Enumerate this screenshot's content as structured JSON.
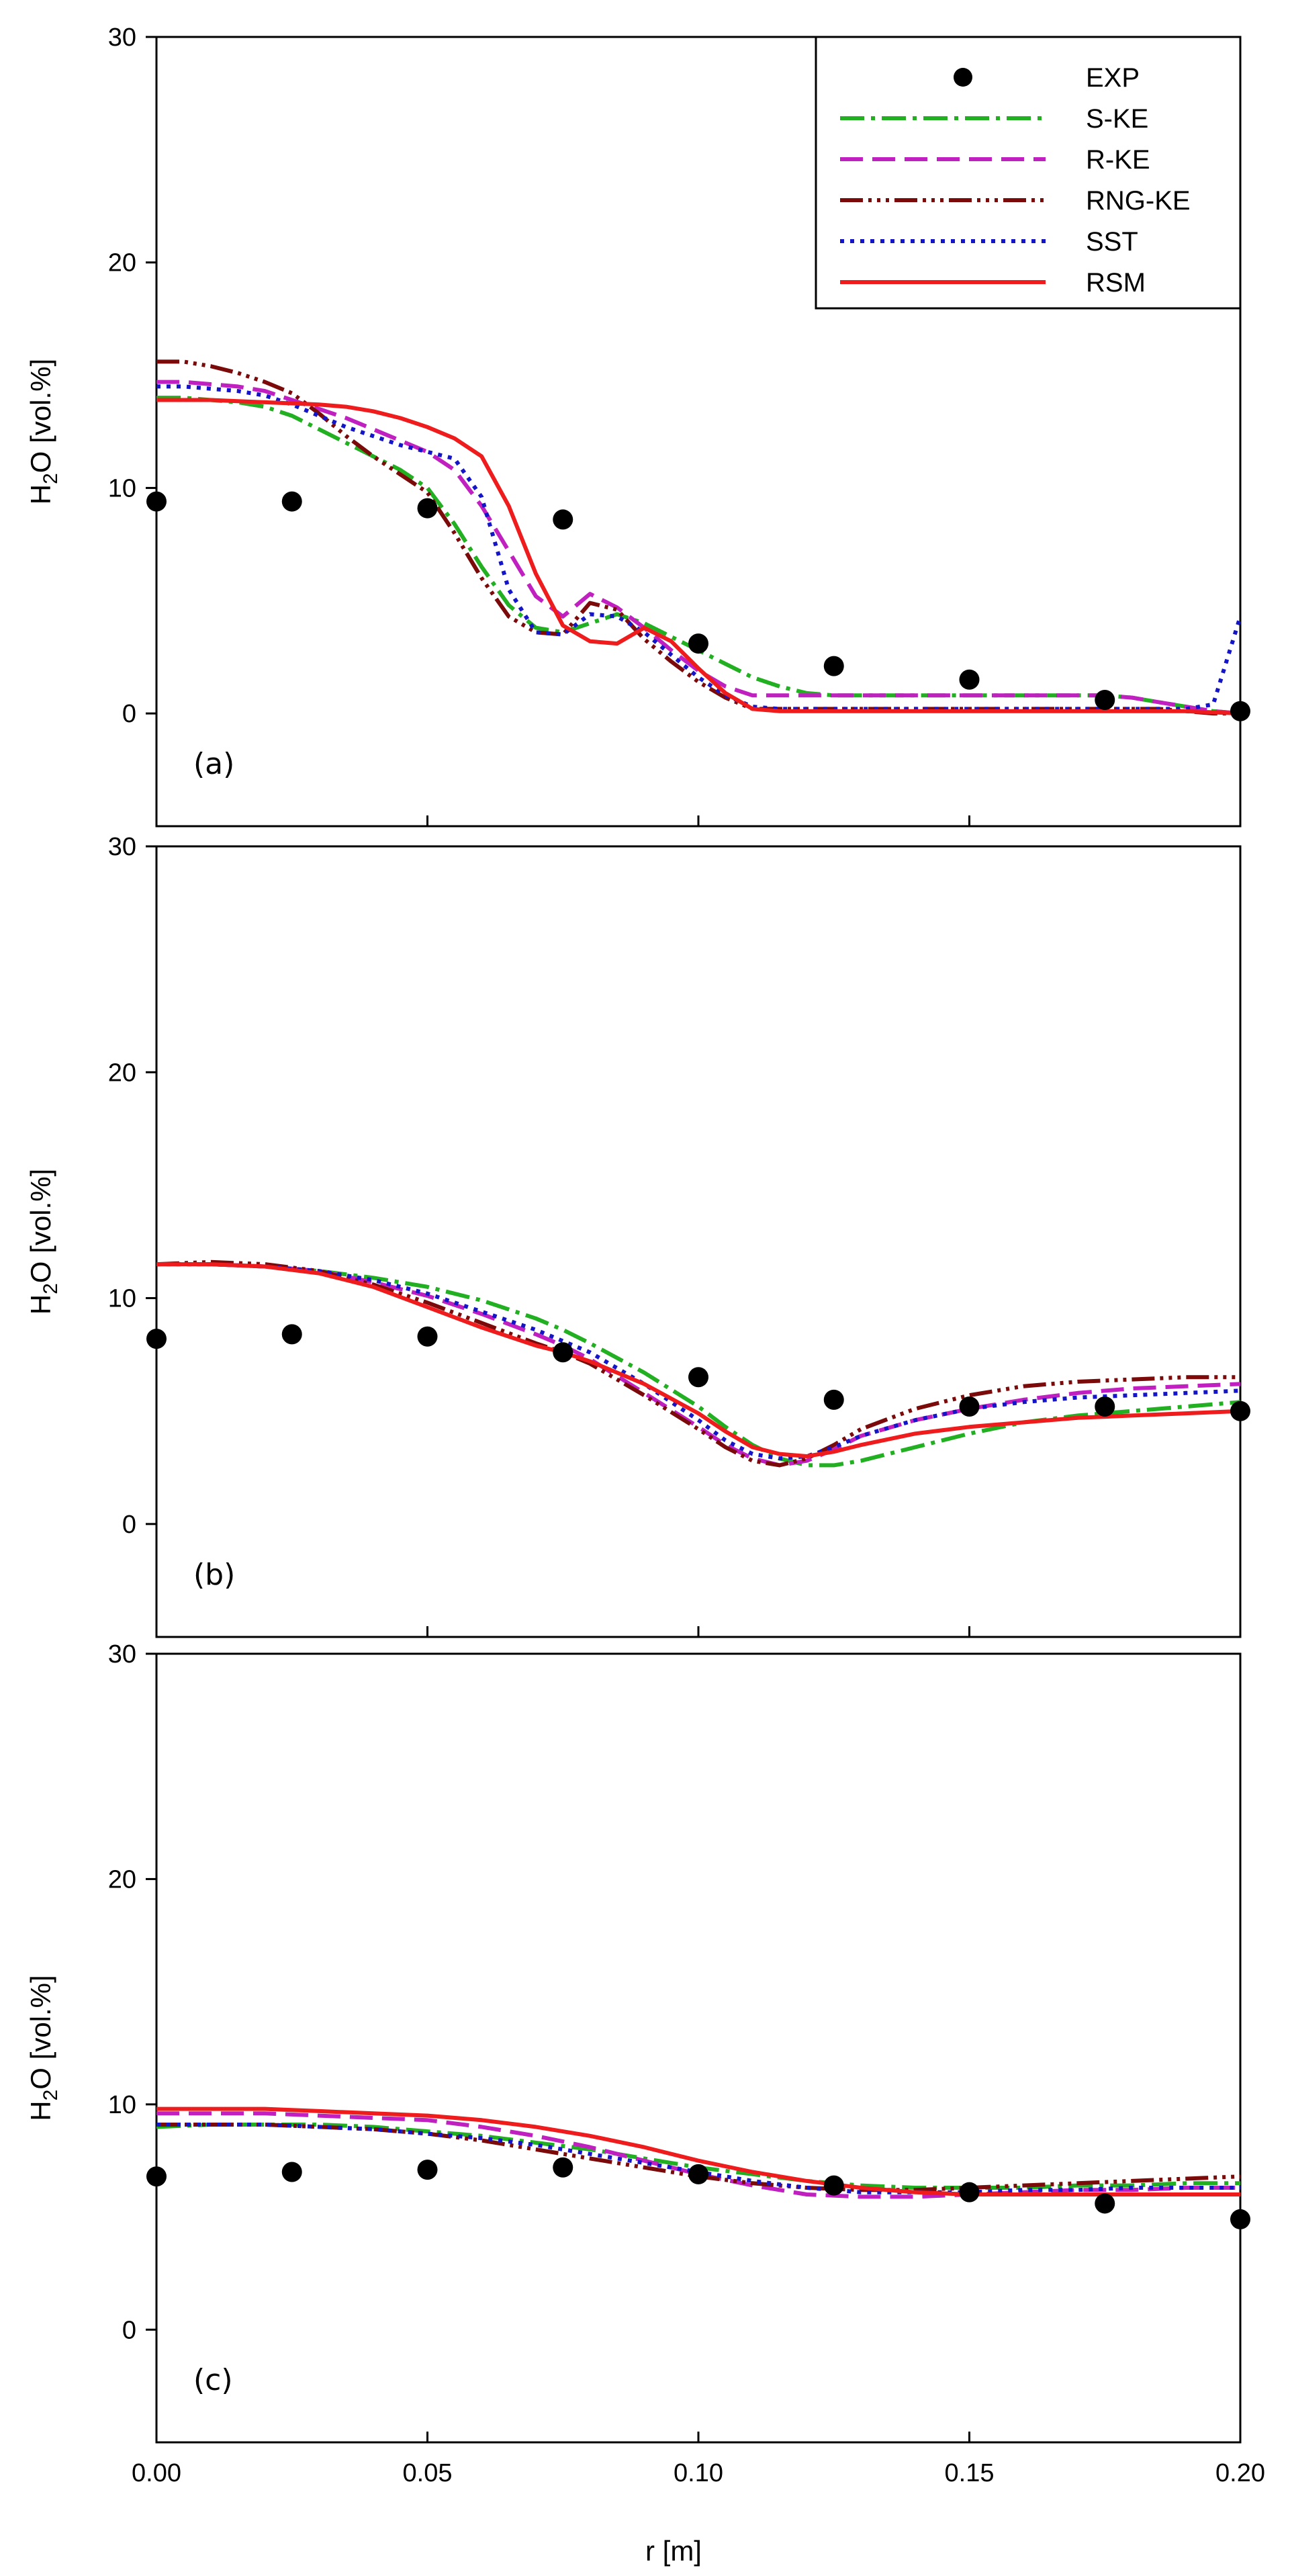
{
  "chart_data": {
    "type": "line",
    "layout": "3 vertically stacked panels sharing the x axis",
    "xlabel": "r [m]",
    "ylabel_main": "H",
    "ylabel_sub": "2",
    "ylabel_rest": "O [vol.%]",
    "xlim": [
      0,
      0.2
    ],
    "ylim": [
      -5,
      30
    ],
    "xticks": [
      0,
      0.05,
      0.1,
      0.15,
      0.2
    ],
    "xtick_labels": [
      "0.00",
      "0.05",
      "0.10",
      "0.15",
      "0.20"
    ],
    "yticks": [
      0,
      10,
      20,
      30
    ],
    "ytick_labels": [
      "0",
      "10",
      "20",
      "30"
    ],
    "legend_placement": "top-right of panel (a)",
    "series_styles": [
      {
        "key": "EXP",
        "name": "EXP",
        "kind": "marker",
        "color": "#000000"
      },
      {
        "key": "S-KE",
        "name": "S-KE",
        "kind": "line",
        "color": "#22b022",
        "dash": "36 10 6 10"
      },
      {
        "key": "R-KE",
        "name": "R-KE",
        "kind": "line",
        "color": "#c020c0",
        "dash": "34 14"
      },
      {
        "key": "RNG-KE",
        "name": "RNG-KE",
        "kind": "line",
        "color": "#7b0a0a",
        "dash": "34 8 5 8 5 8 5 8"
      },
      {
        "key": "SST",
        "name": "SST",
        "kind": "line",
        "color": "#1515c8",
        "dash": "6 9"
      },
      {
        "key": "RSM",
        "name": "RSM",
        "kind": "line",
        "color": "#ee1c1c",
        "dash": ""
      }
    ],
    "panels": [
      {
        "label": "(a)",
        "x": [
          0,
          0.005,
          0.01,
          0.015,
          0.02,
          0.025,
          0.03,
          0.035,
          0.04,
          0.045,
          0.05,
          0.055,
          0.06,
          0.065,
          0.07,
          0.075,
          0.08,
          0.085,
          0.09,
          0.095,
          0.1,
          0.105,
          0.11,
          0.115,
          0.12,
          0.125,
          0.13,
          0.135,
          0.14,
          0.145,
          0.15,
          0.155,
          0.16,
          0.165,
          0.17,
          0.175,
          0.18,
          0.185,
          0.19,
          0.195,
          0.2
        ],
        "series": [
          {
            "name": "EXP",
            "x": [
              0.0,
              0.025,
              0.05,
              0.075,
              0.1,
              0.125,
              0.15,
              0.175,
              0.2
            ],
            "values": [
              9.4,
              9.4,
              9.1,
              8.6,
              3.1,
              2.1,
              1.5,
              0.6,
              0.1
            ]
          },
          {
            "name": "S-KE",
            "values": [
              14.0,
              14.0,
              13.9,
              13.8,
              13.6,
              13.2,
              12.6,
              12.0,
              11.4,
              10.8,
              10.0,
              8.4,
              6.5,
              4.8,
              3.8,
              3.6,
              4.0,
              4.4,
              4.0,
              3.4,
              2.8,
              2.2,
              1.6,
              1.2,
              0.9,
              0.8,
              0.8,
              0.8,
              0.8,
              0.8,
              0.8,
              0.8,
              0.8,
              0.8,
              0.8,
              0.8,
              0.7,
              0.5,
              0.3,
              0.1,
              0.0
            ]
          },
          {
            "name": "R-KE",
            "values": [
              14.7,
              14.7,
              14.6,
              14.5,
              14.3,
              13.9,
              13.5,
              13.1,
              12.6,
              12.1,
              11.6,
              10.8,
              9.2,
              7.2,
              5.2,
              4.3,
              5.3,
              4.7,
              3.8,
              2.8,
              1.9,
              1.2,
              0.8,
              0.8,
              0.8,
              0.8,
              0.8,
              0.8,
              0.8,
              0.8,
              0.8,
              0.8,
              0.8,
              0.8,
              0.8,
              0.8,
              0.7,
              0.5,
              0.3,
              0.1,
              0.0
            ]
          },
          {
            "name": "RNG-KE",
            "values": [
              15.6,
              15.6,
              15.4,
              15.1,
              14.7,
              14.2,
              13.3,
              12.3,
              11.4,
              10.6,
              9.8,
              8.0,
              6.0,
              4.3,
              3.6,
              3.5,
              4.9,
              4.6,
              3.3,
              2.3,
              1.4,
              0.7,
              0.2,
              0.2,
              0.2,
              0.2,
              0.2,
              0.2,
              0.2,
              0.2,
              0.2,
              0.2,
              0.2,
              0.2,
              0.2,
              0.2,
              0.2,
              0.2,
              0.1,
              0.0,
              0.0
            ]
          },
          {
            "name": "SST",
            "values": [
              14.5,
              14.5,
              14.4,
              14.3,
              14.1,
              13.7,
              13.2,
              12.7,
              12.3,
              11.9,
              11.6,
              11.3,
              9.6,
              5.5,
              3.6,
              3.5,
              4.4,
              4.3,
              3.6,
              2.6,
              1.6,
              0.8,
              0.3,
              0.2,
              0.2,
              0.2,
              0.2,
              0.2,
              0.2,
              0.2,
              0.2,
              0.2,
              0.2,
              0.2,
              0.2,
              0.2,
              0.2,
              0.2,
              0.2,
              0.4,
              4.3
            ]
          },
          {
            "name": "RSM",
            "values": [
              13.9,
              13.9,
              13.9,
              13.85,
              13.8,
              13.75,
              13.7,
              13.6,
              13.4,
              13.1,
              12.7,
              12.2,
              11.4,
              9.2,
              6.2,
              3.9,
              3.2,
              3.1,
              3.8,
              3.2,
              2.0,
              0.9,
              0.2,
              0.1,
              0.1,
              0.1,
              0.1,
              0.1,
              0.1,
              0.1,
              0.1,
              0.1,
              0.1,
              0.1,
              0.1,
              0.1,
              0.1,
              0.1,
              0.1,
              0.05,
              0.0
            ]
          }
        ]
      },
      {
        "label": "(b)",
        "x": [
          0,
          0.01,
          0.02,
          0.03,
          0.04,
          0.05,
          0.06,
          0.07,
          0.075,
          0.08,
          0.09,
          0.1,
          0.105,
          0.11,
          0.115,
          0.12,
          0.125,
          0.13,
          0.14,
          0.15,
          0.16,
          0.17,
          0.18,
          0.19,
          0.2
        ],
        "series": [
          {
            "name": "EXP",
            "x": [
              0.0,
              0.025,
              0.05,
              0.075,
              0.1,
              0.125,
              0.15,
              0.175,
              0.2
            ],
            "values": [
              8.2,
              8.4,
              8.3,
              7.6,
              6.5,
              5.5,
              5.2,
              5.2,
              5.0
            ]
          },
          {
            "name": "S-KE",
            "values": [
              11.5,
              11.5,
              11.4,
              11.2,
              10.9,
              10.5,
              9.9,
              9.1,
              8.6,
              8.0,
              6.7,
              5.2,
              4.3,
              3.5,
              2.9,
              2.6,
              2.6,
              2.8,
              3.4,
              4.0,
              4.5,
              4.8,
              5.0,
              5.2,
              5.4
            ]
          },
          {
            "name": "R-KE",
            "values": [
              11.5,
              11.5,
              11.4,
              11.2,
              10.7,
              10.1,
              9.3,
              8.4,
              7.9,
              7.3,
              5.8,
              4.3,
              3.5,
              2.9,
              2.6,
              2.8,
              3.3,
              3.9,
              4.6,
              5.1,
              5.5,
              5.8,
              6.0,
              6.1,
              6.2
            ]
          },
          {
            "name": "RNG-KE",
            "values": [
              11.5,
              11.6,
              11.5,
              11.2,
              10.6,
              9.8,
              8.9,
              8.0,
              7.6,
              7.1,
              5.7,
              4.2,
              3.4,
              2.8,
              2.6,
              2.9,
              3.5,
              4.2,
              5.1,
              5.7,
              6.1,
              6.3,
              6.4,
              6.5,
              6.5
            ]
          },
          {
            "name": "SST",
            "values": [
              11.5,
              11.5,
              11.4,
              11.2,
              10.8,
              10.2,
              9.4,
              8.6,
              8.1,
              7.6,
              6.2,
              4.6,
              3.7,
              3.1,
              2.9,
              3.0,
              3.4,
              3.9,
              4.6,
              5.1,
              5.4,
              5.6,
              5.7,
              5.8,
              5.9
            ]
          },
          {
            "name": "RSM",
            "values": [
              11.5,
              11.5,
              11.4,
              11.1,
              10.5,
              9.6,
              8.7,
              7.9,
              7.6,
              7.2,
              6.2,
              4.9,
              4.1,
              3.4,
              3.1,
              3.0,
              3.2,
              3.5,
              4.0,
              4.3,
              4.5,
              4.7,
              4.8,
              4.9,
              5.0
            ]
          }
        ]
      },
      {
        "label": "(c)",
        "x": [
          0,
          0.01,
          0.02,
          0.03,
          0.04,
          0.05,
          0.06,
          0.07,
          0.08,
          0.09,
          0.1,
          0.11,
          0.12,
          0.13,
          0.14,
          0.15,
          0.16,
          0.17,
          0.18,
          0.19,
          0.2
        ],
        "series": [
          {
            "name": "EXP",
            "x": [
              0.0,
              0.025,
              0.05,
              0.075,
              0.1,
              0.125,
              0.15,
              0.175,
              0.2
            ],
            "values": [
              6.8,
              7.0,
              7.1,
              7.2,
              6.9,
              6.4,
              6.1,
              5.6,
              4.9
            ]
          },
          {
            "name": "S-KE",
            "values": [
              9.0,
              9.1,
              9.1,
              9.1,
              9.0,
              8.8,
              8.6,
              8.3,
              8.0,
              7.6,
              7.2,
              6.9,
              6.6,
              6.4,
              6.3,
              6.3,
              6.3,
              6.4,
              6.4,
              6.5,
              6.5
            ]
          },
          {
            "name": "R-KE",
            "values": [
              9.6,
              9.6,
              9.6,
              9.5,
              9.4,
              9.3,
              9.0,
              8.6,
              8.1,
              7.5,
              6.9,
              6.4,
              6.0,
              5.9,
              5.9,
              6.0,
              6.1,
              6.2,
              6.2,
              6.3,
              6.3
            ]
          },
          {
            "name": "RNG-KE",
            "values": [
              9.1,
              9.1,
              9.1,
              9.0,
              8.9,
              8.7,
              8.4,
              8.0,
              7.6,
              7.2,
              6.8,
              6.5,
              6.3,
              6.2,
              6.2,
              6.3,
              6.4,
              6.5,
              6.6,
              6.7,
              6.8
            ]
          },
          {
            "name": "SST",
            "values": [
              9.1,
              9.1,
              9.1,
              9.0,
              8.9,
              8.7,
              8.5,
              8.2,
              7.8,
              7.4,
              7.0,
              6.6,
              6.3,
              6.1,
              6.1,
              6.1,
              6.2,
              6.2,
              6.3,
              6.3,
              6.3
            ]
          },
          {
            "name": "RSM",
            "values": [
              9.8,
              9.8,
              9.8,
              9.7,
              9.6,
              9.5,
              9.3,
              9.0,
              8.6,
              8.1,
              7.5,
              7.0,
              6.6,
              6.3,
              6.1,
              6.0,
              6.0,
              6.0,
              6.0,
              6.0,
              6.0
            ]
          }
        ]
      }
    ]
  }
}
